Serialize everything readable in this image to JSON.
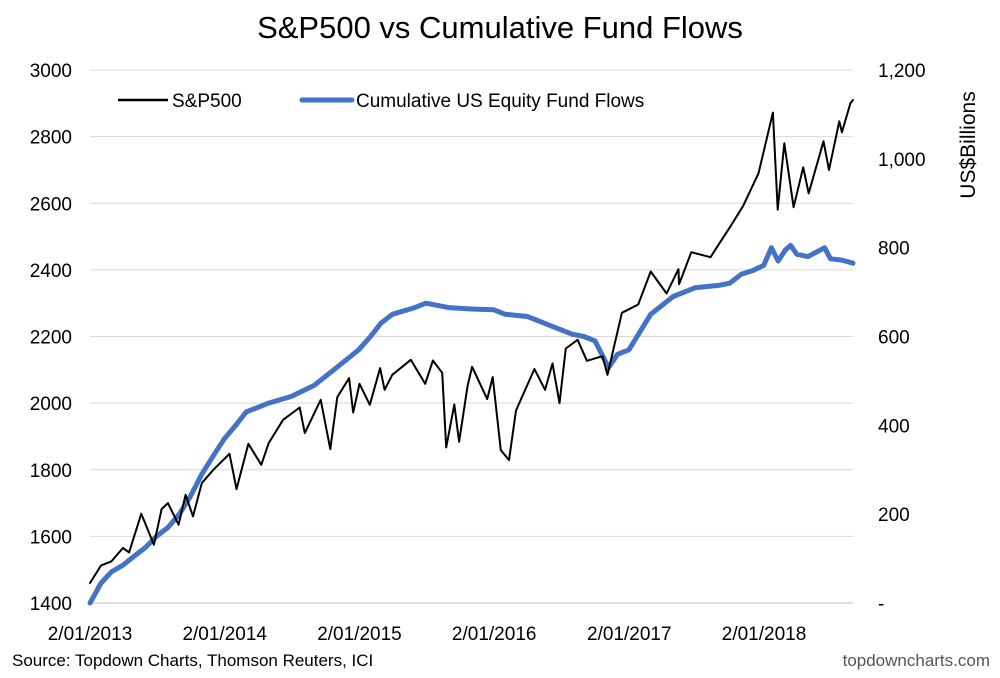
{
  "title": "S&P500 vs Cumulative Fund Flows",
  "source": "Source: Topdown Charts, Thomson Reuters, ICI",
  "watermark": "topdowncharts.com",
  "chart_data": {
    "type": "line",
    "title": "S&P500 vs Cumulative Fund Flows",
    "xlabel": "",
    "ylabel_left": "",
    "ylabel_right": "US$Billions",
    "x_ticks": [
      "2/01/2013",
      "2/01/2014",
      "2/01/2015",
      "2/01/2016",
      "2/01/2017",
      "2/01/2018"
    ],
    "x_range": [
      "2013-01-02",
      "2018-08-31"
    ],
    "y_left": {
      "min": 1400,
      "max": 3000,
      "ticks": [
        1400,
        1600,
        1800,
        2000,
        2200,
        2400,
        2600,
        2800,
        3000
      ],
      "tick_labels": [
        "1400",
        "1600",
        "1800",
        "2000",
        "2200",
        "2400",
        "2600",
        "2800",
        "3000"
      ]
    },
    "y_right": {
      "min": 0,
      "max": 1200,
      "ticks": [
        0,
        200,
        400,
        600,
        800,
        1000,
        1200
      ],
      "tick_labels": [
        "-",
        "200",
        "400",
        "600",
        "800",
        "1,000",
        "1,200"
      ]
    },
    "grid": "horizontal",
    "legend_position": "top-left",
    "series": [
      {
        "name": "S&P500",
        "axis": "left",
        "color": "#000000",
        "points": [
          [
            "2013-01-02",
            1460
          ],
          [
            "2013-02-01",
            1513
          ],
          [
            "2013-03-01",
            1525
          ],
          [
            "2013-04-01",
            1565
          ],
          [
            "2013-04-18",
            1552
          ],
          [
            "2013-05-21",
            1668
          ],
          [
            "2013-06-24",
            1575
          ],
          [
            "2013-07-15",
            1682
          ],
          [
            "2013-08-01",
            1700
          ],
          [
            "2013-08-30",
            1635
          ],
          [
            "2013-09-18",
            1725
          ],
          [
            "2013-10-08",
            1660
          ],
          [
            "2013-11-01",
            1760
          ],
          [
            "2013-12-02",
            1800
          ],
          [
            "2014-01-15",
            1848
          ],
          [
            "2014-02-03",
            1742
          ],
          [
            "2014-03-07",
            1878
          ],
          [
            "2014-04-11",
            1815
          ],
          [
            "2014-05-01",
            1880
          ],
          [
            "2014-06-09",
            1950
          ],
          [
            "2014-07-24",
            1987
          ],
          [
            "2014-08-07",
            1910
          ],
          [
            "2014-09-19",
            2010
          ],
          [
            "2014-10-15",
            1862
          ],
          [
            "2014-11-03",
            2018
          ],
          [
            "2014-12-05",
            2075
          ],
          [
            "2014-12-16",
            1972
          ],
          [
            "2015-01-02",
            2058
          ],
          [
            "2015-01-30",
            1995
          ],
          [
            "2015-02-27",
            2105
          ],
          [
            "2015-03-11",
            2040
          ],
          [
            "2015-04-01",
            2085
          ],
          [
            "2015-05-21",
            2130
          ],
          [
            "2015-06-29",
            2058
          ],
          [
            "2015-07-20",
            2128
          ],
          [
            "2015-08-14",
            2091
          ],
          [
            "2015-08-25",
            1867
          ],
          [
            "2015-09-16",
            1996
          ],
          [
            "2015-09-29",
            1884
          ],
          [
            "2015-10-22",
            2052
          ],
          [
            "2015-11-03",
            2109
          ],
          [
            "2015-12-14",
            2012
          ],
          [
            "2015-12-29",
            2078
          ],
          [
            "2016-01-20",
            1859
          ],
          [
            "2016-02-11",
            1829
          ],
          [
            "2016-03-01",
            1978
          ],
          [
            "2016-04-20",
            2102
          ],
          [
            "2016-05-19",
            2040
          ],
          [
            "2016-06-08",
            2119
          ],
          [
            "2016-06-27",
            2000
          ],
          [
            "2016-07-14",
            2164
          ],
          [
            "2016-08-15",
            2190
          ],
          [
            "2016-09-09",
            2127
          ],
          [
            "2016-10-21",
            2141
          ],
          [
            "2016-11-04",
            2085
          ],
          [
            "2016-12-13",
            2271
          ],
          [
            "2017-01-26",
            2296
          ],
          [
            "2017-03-01",
            2395
          ],
          [
            "2017-04-13",
            2329
          ],
          [
            "2017-05-15",
            2402
          ],
          [
            "2017-05-17",
            2357
          ],
          [
            "2017-06-19",
            2453
          ],
          [
            "2017-08-10",
            2438
          ],
          [
            "2017-09-01",
            2476
          ],
          [
            "2017-10-02",
            2529
          ],
          [
            "2017-11-06",
            2591
          ],
          [
            "2017-12-18",
            2690
          ],
          [
            "2018-01-26",
            2872
          ],
          [
            "2018-02-08",
            2581
          ],
          [
            "2018-02-26",
            2780
          ],
          [
            "2018-03-23",
            2588
          ],
          [
            "2018-04-18",
            2708
          ],
          [
            "2018-05-03",
            2630
          ],
          [
            "2018-06-12",
            2786
          ],
          [
            "2018-06-27",
            2700
          ],
          [
            "2018-07-25",
            2846
          ],
          [
            "2018-08-01",
            2813
          ],
          [
            "2018-08-24",
            2900
          ],
          [
            "2018-08-31",
            2910
          ]
        ]
      },
      {
        "name": "Cumulative US Equity Fund Flows",
        "axis": "right",
        "color": "#4472c4",
        "points": [
          [
            "2013-01-02",
            0
          ],
          [
            "2013-02-01",
            45
          ],
          [
            "2013-03-01",
            70
          ],
          [
            "2013-04-01",
            85
          ],
          [
            "2013-05-01",
            105
          ],
          [
            "2013-06-01",
            125
          ],
          [
            "2013-07-01",
            150
          ],
          [
            "2013-08-01",
            170
          ],
          [
            "2013-09-01",
            200
          ],
          [
            "2013-10-01",
            240
          ],
          [
            "2013-11-01",
            290
          ],
          [
            "2013-12-01",
            330
          ],
          [
            "2014-01-01",
            370
          ],
          [
            "2014-02-01",
            400
          ],
          [
            "2014-03-01",
            430
          ],
          [
            "2014-05-01",
            450
          ],
          [
            "2014-07-01",
            465
          ],
          [
            "2014-09-01",
            490
          ],
          [
            "2014-11-01",
            530
          ],
          [
            "2014-12-31",
            570
          ],
          [
            "2015-02-01",
            600
          ],
          [
            "2015-03-01",
            630
          ],
          [
            "2015-04-01",
            650
          ],
          [
            "2015-06-01",
            665
          ],
          [
            "2015-07-01",
            675
          ],
          [
            "2015-09-01",
            665
          ],
          [
            "2015-11-01",
            662
          ],
          [
            "2016-01-01",
            660
          ],
          [
            "2016-02-01",
            650
          ],
          [
            "2016-04-01",
            645
          ],
          [
            "2016-06-01",
            625
          ],
          [
            "2016-08-01",
            605
          ],
          [
            "2016-09-01",
            600
          ],
          [
            "2016-10-01",
            590
          ],
          [
            "2016-11-07",
            530
          ],
          [
            "2016-12-01",
            560
          ],
          [
            "2017-01-01",
            570
          ],
          [
            "2017-03-01",
            650
          ],
          [
            "2017-05-01",
            690
          ],
          [
            "2017-07-01",
            710
          ],
          [
            "2017-09-01",
            715
          ],
          [
            "2017-10-01",
            720
          ],
          [
            "2017-11-01",
            740
          ],
          [
            "2017-12-01",
            748
          ],
          [
            "2018-01-01",
            760
          ],
          [
            "2018-01-22",
            800
          ],
          [
            "2018-02-09",
            770
          ],
          [
            "2018-03-01",
            795
          ],
          [
            "2018-03-15",
            805
          ],
          [
            "2018-04-01",
            785
          ],
          [
            "2018-05-01",
            780
          ],
          [
            "2018-06-15",
            800
          ],
          [
            "2018-07-01",
            775
          ],
          [
            "2018-08-01",
            772
          ],
          [
            "2018-08-31",
            765
          ]
        ]
      }
    ]
  }
}
